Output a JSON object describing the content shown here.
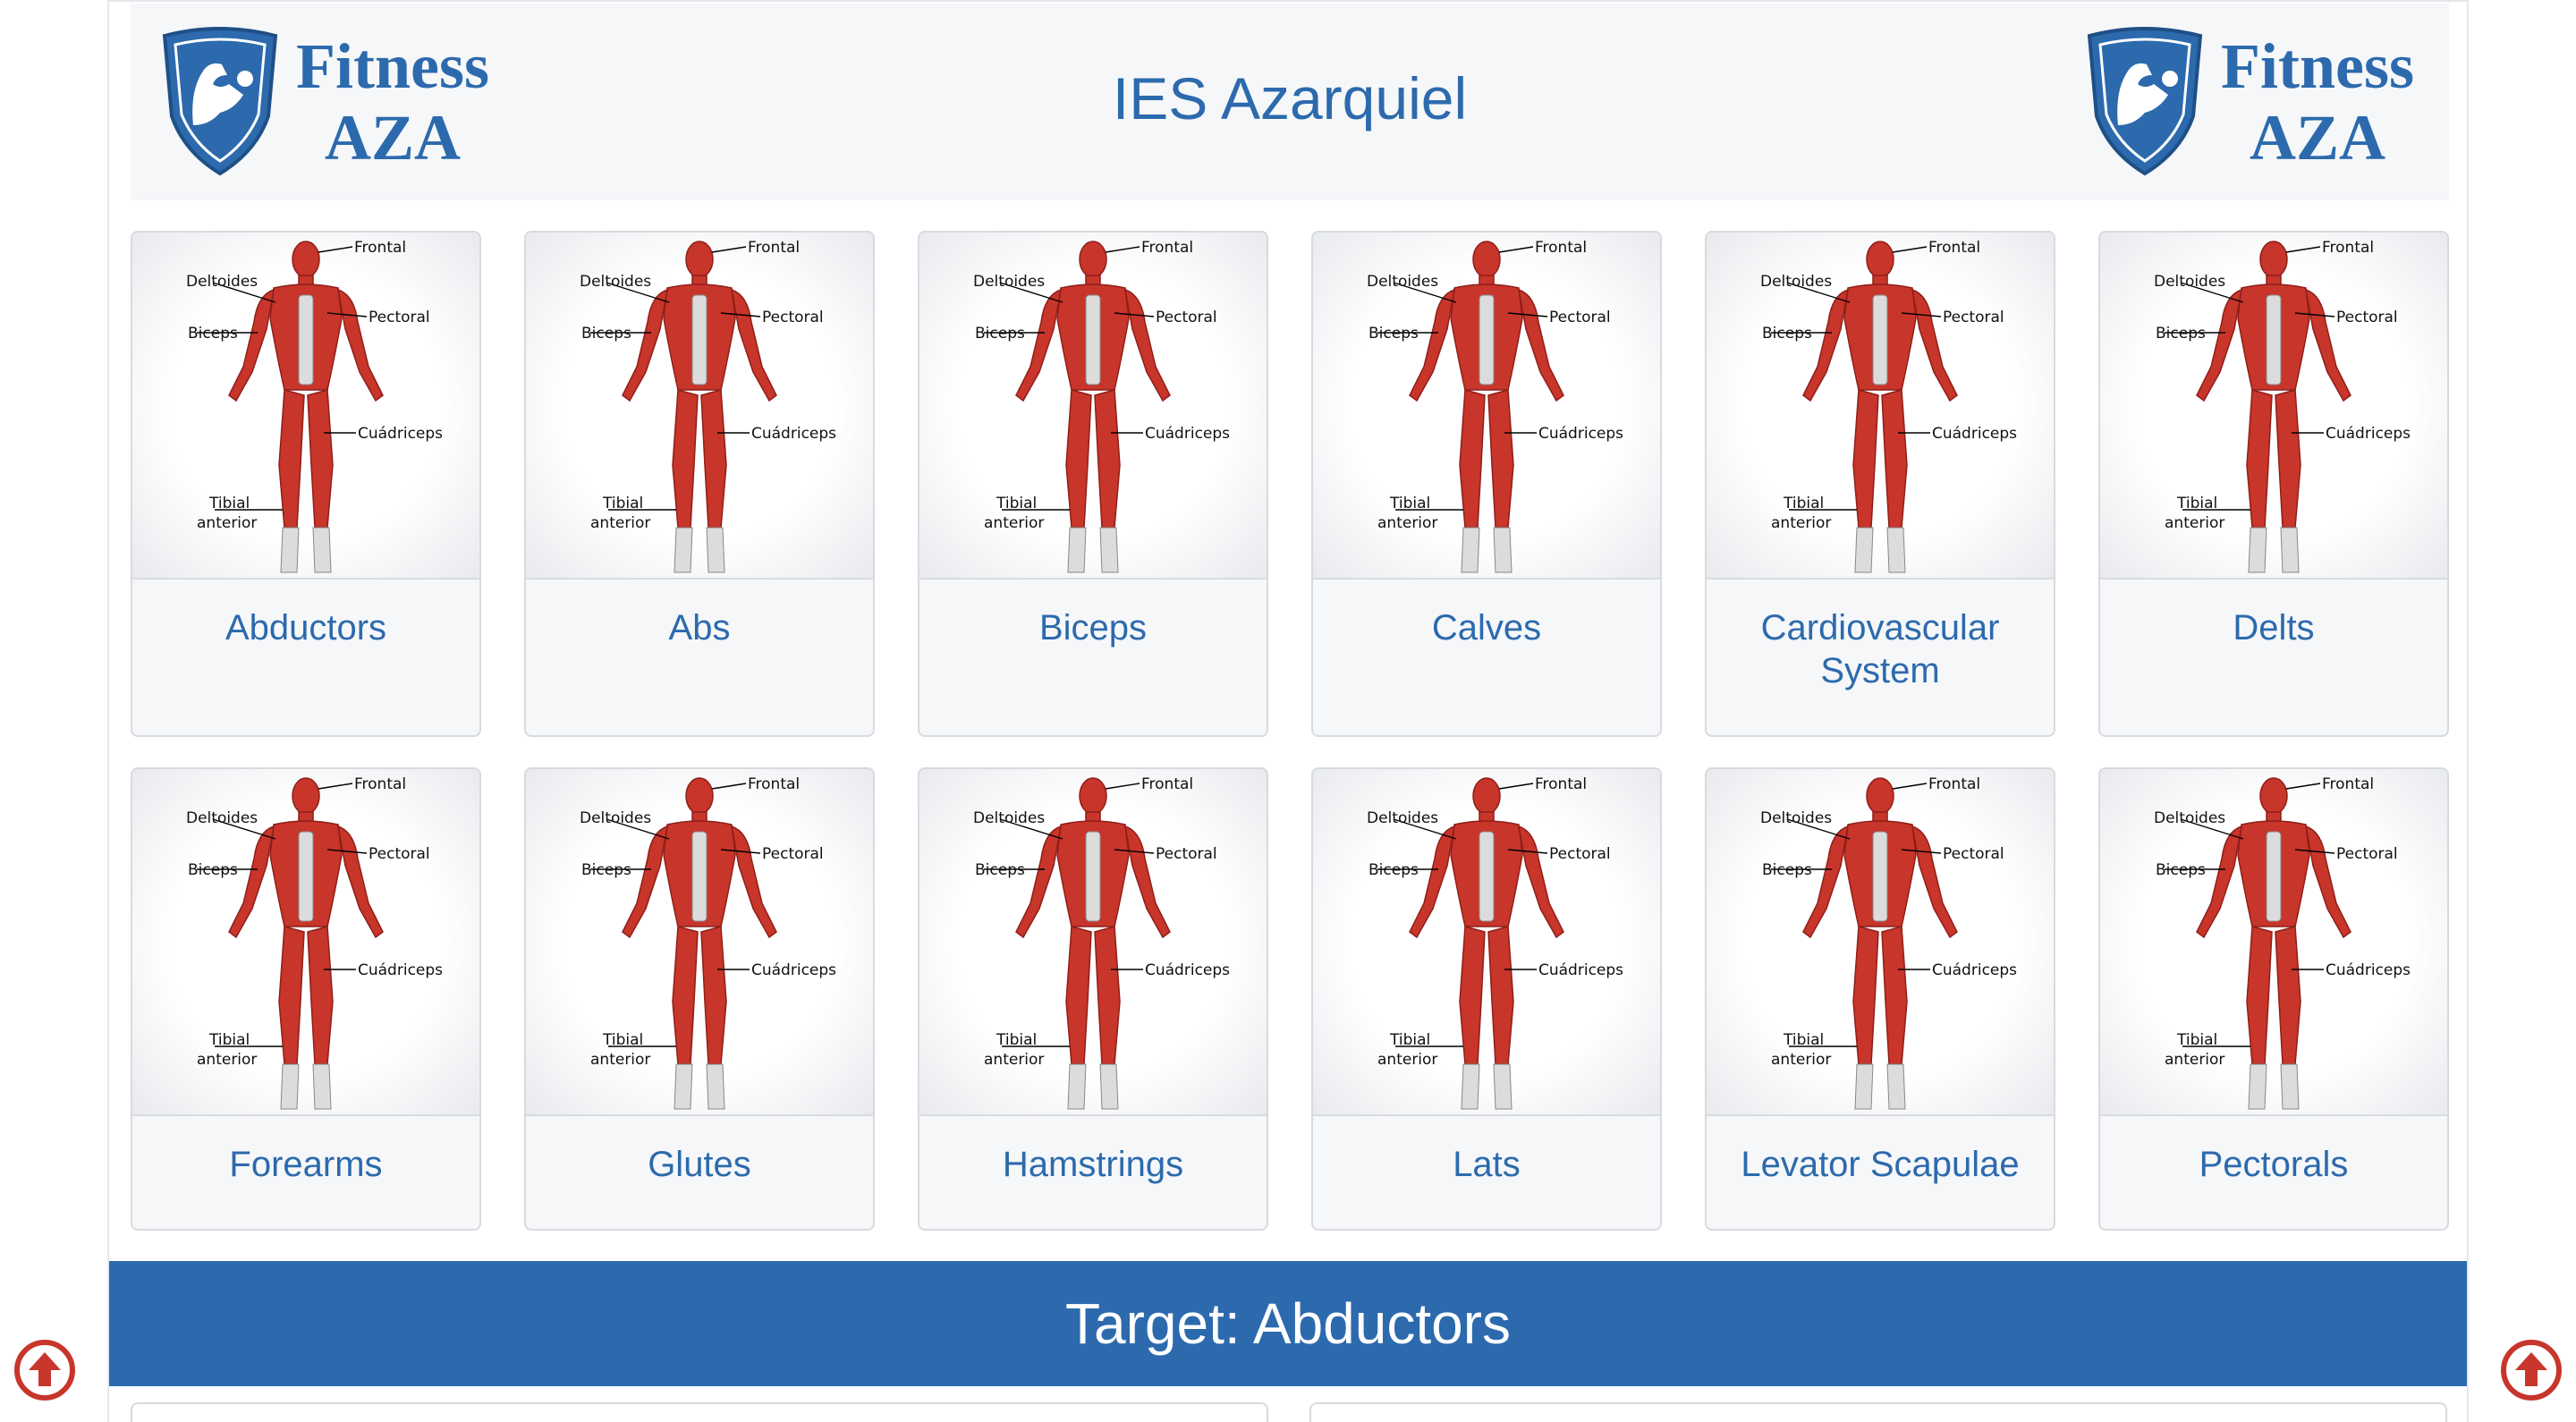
{
  "header": {
    "title": "IES Azarquiel",
    "logo_line1": "Fitness",
    "logo_line2": "AZA",
    "logo_icon": "flexing-arm-shield-icon"
  },
  "diagram_labels": {
    "frontal": "Frontal",
    "deltoides": "Deltoides",
    "pectoral": "Pectoral",
    "biceps": "Biceps",
    "cuadriceps": "Cuádriceps",
    "tibial1": "Tibial",
    "tibial2": "anterior"
  },
  "muscles": [
    {
      "name": "Abductors"
    },
    {
      "name": "Abs"
    },
    {
      "name": "Biceps"
    },
    {
      "name": "Calves"
    },
    {
      "name": "Cardiovascular System"
    },
    {
      "name": "Delts"
    },
    {
      "name": "Forearms"
    },
    {
      "name": "Glutes"
    },
    {
      "name": "Hamstrings"
    },
    {
      "name": "Lats"
    },
    {
      "name": "Levator Scapulae"
    },
    {
      "name": "Pectorals"
    }
  ],
  "target": {
    "text": "Target: Abductors"
  },
  "scroll_top": {
    "icon": "arrow-up-circle-icon"
  },
  "colors": {
    "accent": "#2c6aad",
    "muscle": "#c8352b",
    "card_bg": "#f6f7f9"
  }
}
